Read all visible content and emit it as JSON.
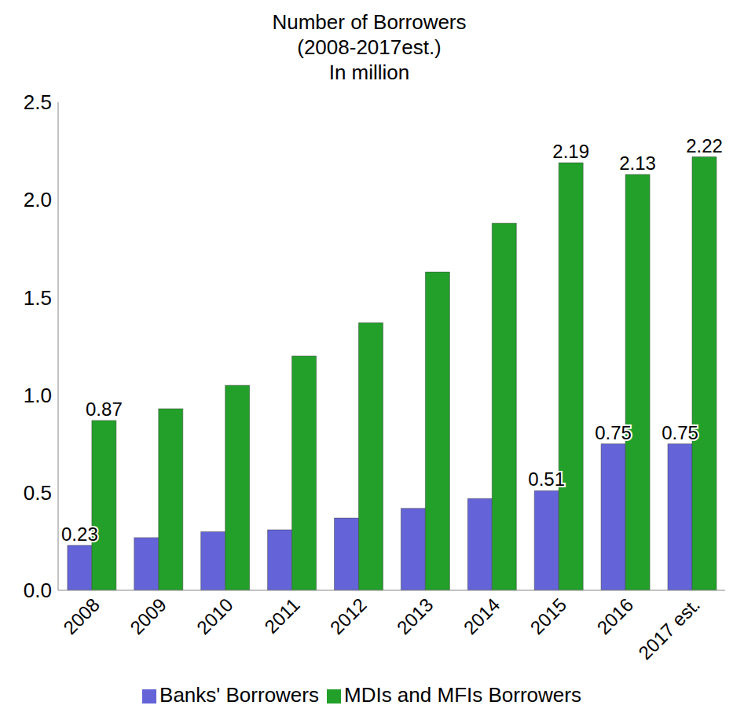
{
  "chart_data": {
    "type": "bar",
    "title": "Number of Borrowers",
    "subtitle": "(2008-2017est.)",
    "ylabel": "In million",
    "categories": [
      "2008",
      "2009",
      "2010",
      "2011",
      "2012",
      "2013",
      "2014",
      "2015",
      "2016",
      "2017 est."
    ],
    "series": [
      {
        "name": "Banks' Borrowers",
        "color": "#6464d8",
        "values": [
          0.23,
          0.27,
          0.3,
          0.31,
          0.37,
          0.42,
          0.47,
          0.51,
          0.75,
          0.75
        ],
        "value_labels": [
          "0.23",
          null,
          null,
          null,
          null,
          null,
          null,
          "0.51",
          "0.75",
          "0.75"
        ]
      },
      {
        "name": "MDIs and MFIs Borrowers",
        "color": "#22a02a",
        "values": [
          0.87,
          0.93,
          1.05,
          1.2,
          1.37,
          1.63,
          1.88,
          2.19,
          2.13,
          2.22
        ],
        "value_labels": [
          "0.87",
          null,
          null,
          null,
          null,
          null,
          null,
          "2.19",
          "2.13",
          "2.22"
        ]
      }
    ],
    "ylim": [
      0,
      2.5
    ],
    "yticks": [
      {
        "value": 0,
        "label": "0.0"
      },
      {
        "value": 0.5,
        "label": "0.5"
      },
      {
        "value": 1,
        "label": "1.0"
      },
      {
        "value": 1.5,
        "label": "1.5"
      },
      {
        "value": 2,
        "label": "2.0"
      },
      {
        "value": 2.5,
        "label": "2.5"
      }
    ],
    "grid": false,
    "legend": "bottom",
    "data_labels": true
  }
}
